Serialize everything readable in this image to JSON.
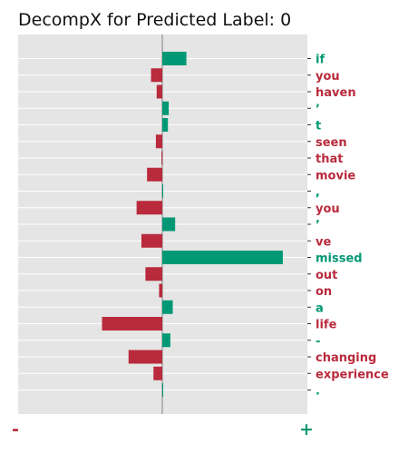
{
  "chart_data": {
    "type": "bar",
    "orientation": "horizontal",
    "title": "DecompX for Predicted Label: 0",
    "categories": [
      "if",
      "you",
      "haven",
      "’",
      "t",
      "seen",
      "that",
      "movie",
      ",",
      "you",
      "’",
      "ve",
      "missed",
      "out",
      "on",
      "a",
      "life",
      "-",
      "changing",
      "experience",
      "."
    ],
    "values": [
      0.15,
      -0.07,
      -0.035,
      0.04,
      0.035,
      -0.04,
      -0.005,
      -0.095,
      0.005,
      -0.16,
      0.08,
      -0.13,
      0.75,
      -0.105,
      -0.02,
      0.065,
      -0.375,
      0.05,
      -0.21,
      -0.055,
      0.005
    ],
    "xlim": [
      -0.9,
      0.9
    ],
    "xlabel_negative": "-",
    "xlabel_positive": "+",
    "grid": true,
    "colors": {
      "positive": "#009874",
      "negative": "#b92a3c",
      "background": "#e5e5e5",
      "grid": "#ffffff",
      "zero_line": "#b3b3b3"
    }
  }
}
